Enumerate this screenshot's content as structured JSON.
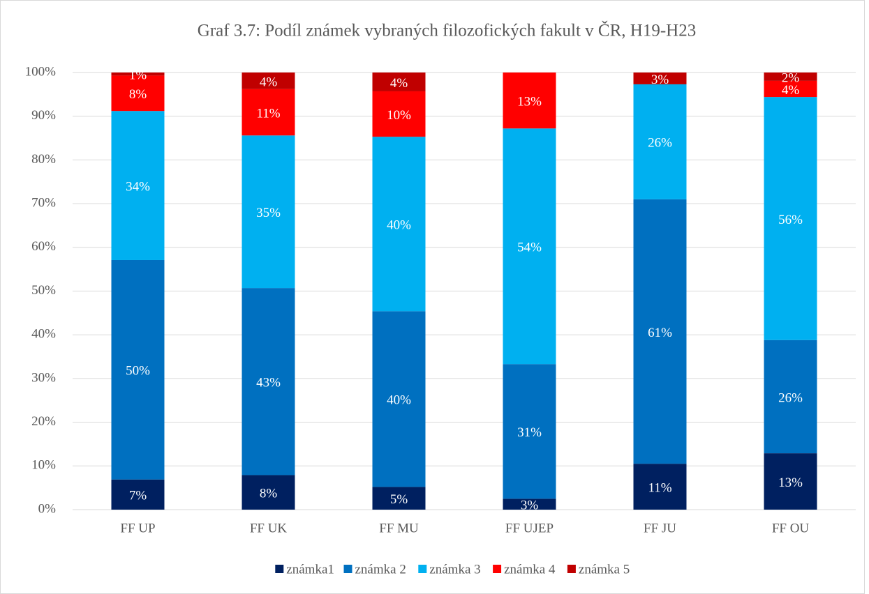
{
  "chart_data": {
    "type": "stacked_bar",
    "title": "Graf 3.7: Podíl známek vybraných filozofických fakult v ČR, H19-H23",
    "categories": [
      "FF UP",
      "FF UK",
      "FF MU",
      "FF UJEP",
      "FF JU",
      "FF OU"
    ],
    "series": [
      {
        "name": "známka1",
        "color": "#002060",
        "values": [
          6.9,
          7.9,
          5.2,
          2.5,
          10.5,
          12.9
        ],
        "value_labels": [
          "7%",
          "8%",
          "5%",
          "3%",
          "11%",
          "13%"
        ]
      },
      {
        "name": "známka 2",
        "color": "#0070c0",
        "values": [
          50.2,
          42.8,
          40.2,
          30.8,
          60.5,
          25.9
        ],
        "value_labels": [
          "50%",
          "43%",
          "40%",
          "31%",
          "61%",
          "26%"
        ]
      },
      {
        "name": "známka 3",
        "color": "#00b0f0",
        "values": [
          34.1,
          34.9,
          39.9,
          53.9,
          26.3,
          55.6
        ],
        "value_labels": [
          "34%",
          "35%",
          "40%",
          "54%",
          "26%",
          "56%"
        ]
      },
      {
        "name": "známka 4",
        "color": "#ff0000",
        "values": [
          8.1,
          10.6,
          10.4,
          12.8,
          null,
          3.7
        ],
        "value_labels": [
          "8%",
          "11%",
          "10%",
          "13%",
          null,
          "4%"
        ]
      },
      {
        "name": "známka 5",
        "color": "#c00000",
        "values": [
          0.7,
          3.8,
          4.3,
          null,
          2.7,
          1.9
        ],
        "value_labels": [
          "1%",
          "4%",
          "4%",
          null,
          "3%",
          "2%"
        ]
      }
    ],
    "ylim": [
      0,
      100
    ],
    "yticks": [
      {
        "value": 0,
        "label": "0%"
      },
      {
        "value": 10,
        "label": "10%"
      },
      {
        "value": 20,
        "label": "20%"
      },
      {
        "value": 30,
        "label": "30%"
      },
      {
        "value": 40,
        "label": "40%"
      },
      {
        "value": 50,
        "label": "50%"
      },
      {
        "value": 60,
        "label": "60%"
      },
      {
        "value": 70,
        "label": "70%"
      },
      {
        "value": 80,
        "label": "80%"
      },
      {
        "value": 90,
        "label": "90%"
      },
      {
        "value": 100,
        "label": "100%"
      }
    ],
    "grid": true,
    "legend": "bottom"
  }
}
